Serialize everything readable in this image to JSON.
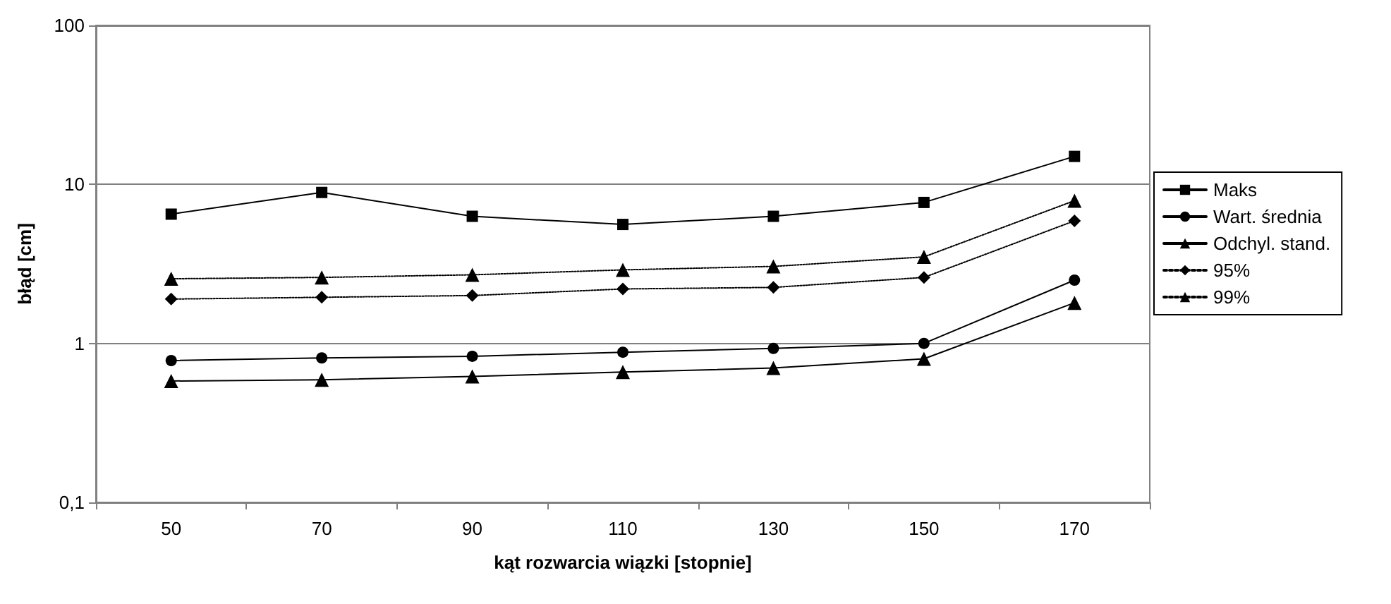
{
  "chart_data": {
    "type": "line",
    "xlabel": "kąt rozwarcia wiązki [stopnie]",
    "ylabel": "błąd [cm]",
    "categories": [
      "50",
      "70",
      "90",
      "110",
      "130",
      "150",
      "170"
    ],
    "log": "y",
    "ylim": [
      0.1,
      100
    ],
    "yticks": [
      {
        "value": 0.1,
        "label": "0,1"
      },
      1,
      10,
      100
    ],
    "grid": "y",
    "legend": "right",
    "series": [
      {
        "name": "Maks",
        "color": "#000000",
        "marker": "square",
        "line_style": "solid",
        "values": [
          6.5,
          8.9,
          6.3,
          5.6,
          6.3,
          7.7,
          15
        ]
      },
      {
        "name": "Wart. średnia",
        "color": "#000000",
        "marker": "circle",
        "line_style": "solid",
        "values": [
          0.78,
          0.81,
          0.83,
          0.88,
          0.93,
          1.0,
          2.5
        ]
      },
      {
        "name": "Odchyl. stand.",
        "color": "#000000",
        "marker": "triangle",
        "line_style": "solid",
        "values": [
          0.58,
          0.59,
          0.62,
          0.66,
          0.7,
          0.8,
          1.8
        ]
      },
      {
        "name": "95%",
        "color": "#000000",
        "marker": "diamond",
        "line_style": "dotted",
        "values": [
          1.9,
          1.95,
          2.0,
          2.2,
          2.25,
          2.6,
          5.9
        ]
      },
      {
        "name": "99%",
        "color": "#000000",
        "marker": "triangle",
        "line_style": "dotted",
        "values": [
          2.55,
          2.6,
          2.7,
          2.9,
          3.05,
          3.5,
          7.9
        ]
      }
    ]
  }
}
